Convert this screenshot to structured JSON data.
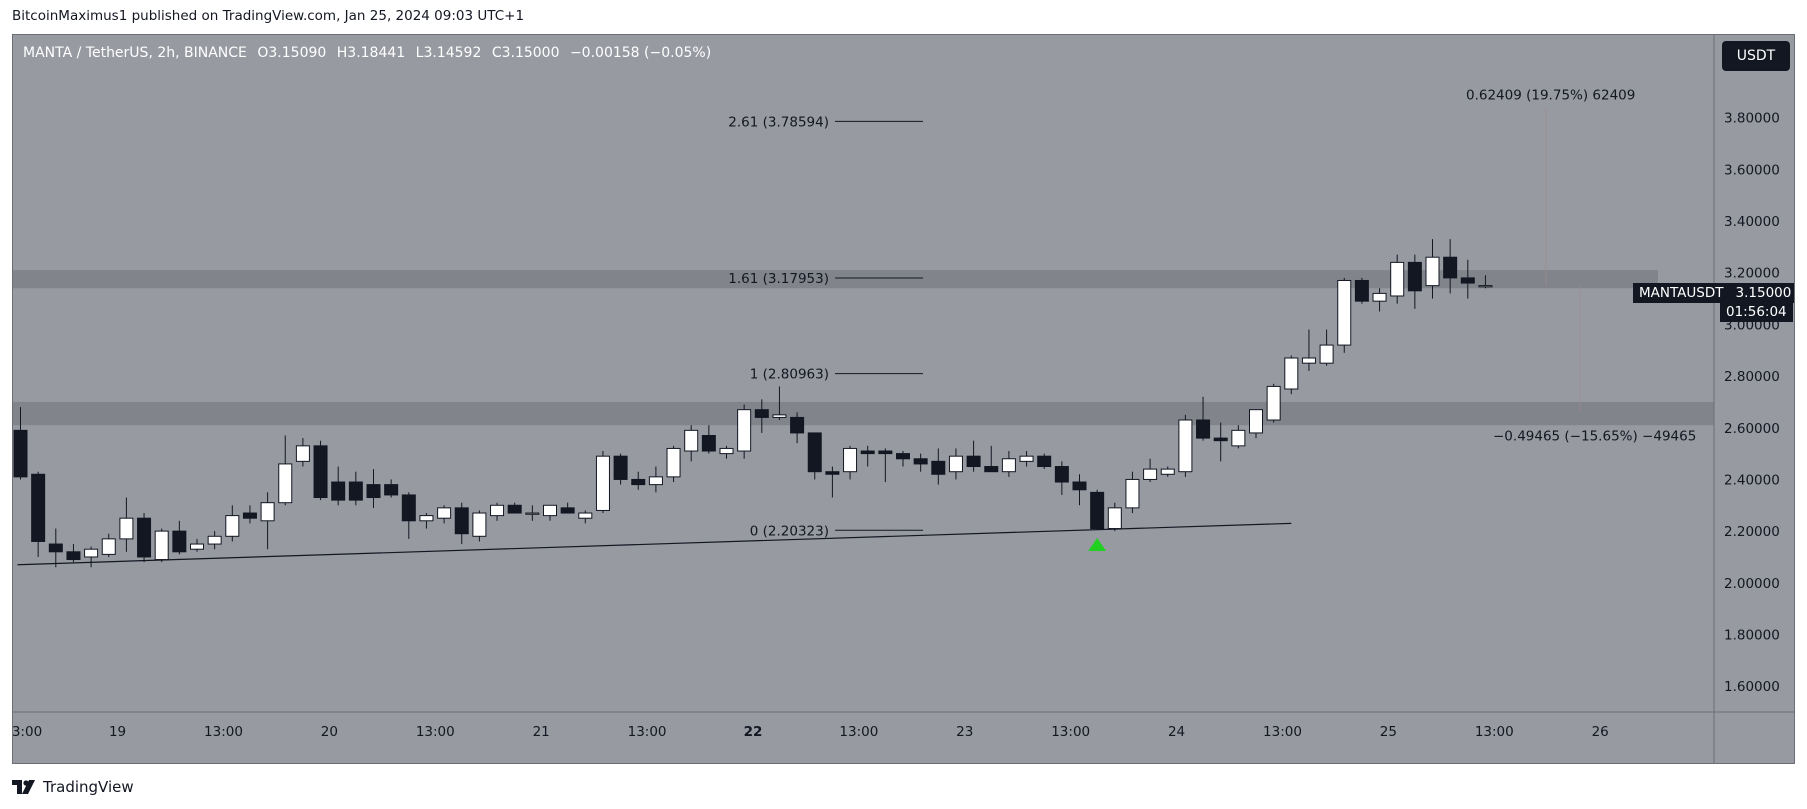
{
  "header": {
    "text": "BitcoinMaximus1 published on TradingView.com, Jan 25, 2024 09:03 UTC+1"
  },
  "symbol": {
    "name": "MANTA / TetherUS, 2h, BINANCE",
    "open_label": "O",
    "open": "3.15090",
    "high_label": "H",
    "high": "3.18441",
    "low_label": "L",
    "low": "3.14592",
    "close_label": "C",
    "close": "3.15000",
    "change": "−0.00158 (−0.05%)"
  },
  "currency_button": "USDT",
  "price_tag": {
    "symbol": "MANTAUSDT",
    "value": "3.15000",
    "countdown": "01:56:04"
  },
  "footer": {
    "brand": "TradingView"
  },
  "colors": {
    "background": "#979aa1",
    "bull_body": "#ffffff",
    "bear_body": "#131722",
    "zone": "#7d8087",
    "arrow": "#22d022"
  },
  "chart_data": {
    "type": "candlestick",
    "y_range": [
      1.5,
      4.12
    ],
    "y_ticks": [
      {
        "value": 3.8,
        "label": "3.80000"
      },
      {
        "value": 3.6,
        "label": "3.60000"
      },
      {
        "value": 3.4,
        "label": "3.40000"
      },
      {
        "value": 3.2,
        "label": "3.20000"
      },
      {
        "value": 3.0,
        "label": "3.00000"
      },
      {
        "value": 2.8,
        "label": "2.80000"
      },
      {
        "value": 2.6,
        "label": "2.60000"
      },
      {
        "value": 2.4,
        "label": "2.40000"
      },
      {
        "value": 2.2,
        "label": "2.20000"
      },
      {
        "value": 2.0,
        "label": "2.00000"
      },
      {
        "value": 1.8,
        "label": "1.80000"
      },
      {
        "value": 1.6,
        "label": "1.60000"
      }
    ],
    "x_range": [
      0,
      85
    ],
    "x_ticks": [
      {
        "value": 0,
        "label": "3:00",
        "bold": false
      },
      {
        "value": 5.5,
        "label": "19",
        "bold": false
      },
      {
        "value": 11.5,
        "label": "13:00",
        "bold": false
      },
      {
        "value": 17.5,
        "label": "20",
        "bold": false
      },
      {
        "value": 23.5,
        "label": "13:00",
        "bold": false
      },
      {
        "value": 29.5,
        "label": "21",
        "bold": false
      },
      {
        "value": 35.5,
        "label": "13:00",
        "bold": false
      },
      {
        "value": 41.5,
        "label": "22",
        "bold": true
      },
      {
        "value": 47.5,
        "label": "13:00",
        "bold": false
      },
      {
        "value": 53.5,
        "label": "23",
        "bold": false
      },
      {
        "value": 59.5,
        "label": "13:00",
        "bold": false
      },
      {
        "value": 65.5,
        "label": "24",
        "bold": false
      },
      {
        "value": 71.5,
        "label": "13:00",
        "bold": false
      },
      {
        "value": 77.5,
        "label": "25",
        "bold": false
      },
      {
        "value": 83.5,
        "label": "13:00",
        "bold": false
      },
      {
        "value": 89.5,
        "label": "26",
        "bold": false
      }
    ],
    "candles": [
      [
        2.59,
        2.68,
        2.4,
        2.41
      ],
      [
        2.42,
        2.43,
        2.1,
        2.16
      ],
      [
        2.15,
        2.21,
        2.06,
        2.12
      ],
      [
        2.12,
        2.15,
        2.08,
        2.09
      ],
      [
        2.1,
        2.14,
        2.06,
        2.13
      ],
      [
        2.11,
        2.19,
        2.1,
        2.17
      ],
      [
        2.17,
        2.33,
        2.12,
        2.25
      ],
      [
        2.25,
        2.27,
        2.08,
        2.1
      ],
      [
        2.09,
        2.21,
        2.08,
        2.2
      ],
      [
        2.2,
        2.24,
        2.11,
        2.12
      ],
      [
        2.13,
        2.17,
        2.12,
        2.15
      ],
      [
        2.15,
        2.2,
        2.13,
        2.18
      ],
      [
        2.18,
        2.3,
        2.16,
        2.26
      ],
      [
        2.27,
        2.3,
        2.23,
        2.25
      ],
      [
        2.24,
        2.35,
        2.13,
        2.31
      ],
      [
        2.31,
        2.57,
        2.3,
        2.46
      ],
      [
        2.47,
        2.56,
        2.45,
        2.53
      ],
      [
        2.53,
        2.55,
        2.32,
        2.33
      ],
      [
        2.39,
        2.45,
        2.3,
        2.32
      ],
      [
        2.39,
        2.43,
        2.3,
        2.32
      ],
      [
        2.38,
        2.44,
        2.29,
        2.33
      ],
      [
        2.38,
        2.4,
        2.33,
        2.34
      ],
      [
        2.34,
        2.35,
        2.17,
        2.24
      ],
      [
        2.24,
        2.27,
        2.21,
        2.26
      ],
      [
        2.25,
        2.3,
        2.23,
        2.29
      ],
      [
        2.29,
        2.31,
        2.15,
        2.19
      ],
      [
        2.18,
        2.28,
        2.16,
        2.27
      ],
      [
        2.26,
        2.31,
        2.24,
        2.3
      ],
      [
        2.3,
        2.31,
        2.27,
        2.27
      ],
      [
        2.27,
        2.3,
        2.24,
        2.27
      ],
      [
        2.26,
        2.3,
        2.24,
        2.3
      ],
      [
        2.29,
        2.31,
        2.27,
        2.27
      ],
      [
        2.25,
        2.28,
        2.23,
        2.27
      ],
      [
        2.28,
        2.51,
        2.27,
        2.49
      ],
      [
        2.49,
        2.5,
        2.38,
        2.4
      ],
      [
        2.4,
        2.43,
        2.36,
        2.38
      ],
      [
        2.38,
        2.45,
        2.35,
        2.41
      ],
      [
        2.41,
        2.53,
        2.39,
        2.52
      ],
      [
        2.51,
        2.61,
        2.47,
        2.59
      ],
      [
        2.57,
        2.61,
        2.5,
        2.51
      ],
      [
        2.5,
        2.53,
        2.48,
        2.52
      ],
      [
        2.51,
        2.69,
        2.48,
        2.67
      ],
      [
        2.67,
        2.71,
        2.58,
        2.64
      ],
      [
        2.64,
        2.76,
        2.63,
        2.65
      ],
      [
        2.64,
        2.66,
        2.54,
        2.58
      ],
      [
        2.58,
        2.58,
        2.4,
        2.43
      ],
      [
        2.43,
        2.45,
        2.33,
        2.42
      ],
      [
        2.43,
        2.53,
        2.4,
        2.52
      ],
      [
        2.51,
        2.53,
        2.45,
        2.5
      ],
      [
        2.51,
        2.52,
        2.39,
        2.5
      ],
      [
        2.5,
        2.51,
        2.45,
        2.48
      ],
      [
        2.48,
        2.5,
        2.43,
        2.46
      ],
      [
        2.47,
        2.52,
        2.38,
        2.42
      ],
      [
        2.43,
        2.52,
        2.4,
        2.49
      ],
      [
        2.49,
        2.55,
        2.43,
        2.45
      ],
      [
        2.45,
        2.53,
        2.43,
        2.43
      ],
      [
        2.43,
        2.51,
        2.41,
        2.48
      ],
      [
        2.47,
        2.51,
        2.45,
        2.49
      ],
      [
        2.49,
        2.5,
        2.44,
        2.45
      ],
      [
        2.45,
        2.47,
        2.34,
        2.39
      ],
      [
        2.39,
        2.42,
        2.3,
        2.36
      ],
      [
        2.35,
        2.36,
        2.21,
        2.21
      ],
      [
        2.21,
        2.31,
        2.2,
        2.29
      ],
      [
        2.29,
        2.43,
        2.27,
        2.4
      ],
      [
        2.4,
        2.48,
        2.39,
        2.44
      ],
      [
        2.42,
        2.45,
        2.41,
        2.44
      ],
      [
        2.43,
        2.65,
        2.41,
        2.63
      ],
      [
        2.63,
        2.72,
        2.55,
        2.56
      ],
      [
        2.56,
        2.62,
        2.47,
        2.55
      ],
      [
        2.53,
        2.61,
        2.52,
        2.59
      ],
      [
        2.58,
        2.67,
        2.56,
        2.67
      ],
      [
        2.63,
        2.77,
        2.62,
        2.76
      ],
      [
        2.75,
        2.88,
        2.73,
        2.87
      ],
      [
        2.85,
        2.98,
        2.82,
        2.87
      ],
      [
        2.85,
        2.98,
        2.84,
        2.92
      ],
      [
        2.92,
        3.18,
        2.89,
        3.17
      ],
      [
        3.17,
        3.18,
        3.08,
        3.09
      ],
      [
        3.09,
        3.14,
        3.05,
        3.12
      ],
      [
        3.11,
        3.27,
        3.08,
        3.24
      ],
      [
        3.24,
        3.27,
        3.06,
        3.13
      ],
      [
        3.15,
        3.33,
        3.1,
        3.26
      ],
      [
        3.26,
        3.33,
        3.12,
        3.18
      ],
      [
        3.18,
        3.25,
        3.1,
        3.16
      ],
      [
        3.15,
        3.19,
        3.14,
        3.15
      ]
    ],
    "zones": [
      {
        "low": 3.14,
        "high": 3.21
      },
      {
        "low": 2.61,
        "high": 2.7
      }
    ],
    "fib_levels": [
      {
        "value": 3.78594,
        "label": "2.61 (3.78594)"
      },
      {
        "value": 3.17953,
        "label": "1.61 (3.17953)"
      },
      {
        "value": 2.80963,
        "label": "1 (2.80963)"
      },
      {
        "value": 2.20323,
        "label": "0 (2.20323)"
      }
    ],
    "trendline": {
      "x1": 0,
      "y1": 2.07,
      "x2": 72,
      "y2": 2.23
    },
    "measurements": [
      {
        "text": "0.62409 (19.75%) 62409",
        "value": 3.89
      },
      {
        "text": "−0.49465 (−15.65%) −49465",
        "value": 2.57
      }
    ],
    "arrow": {
      "x": 61,
      "value": 2.15
    }
  }
}
